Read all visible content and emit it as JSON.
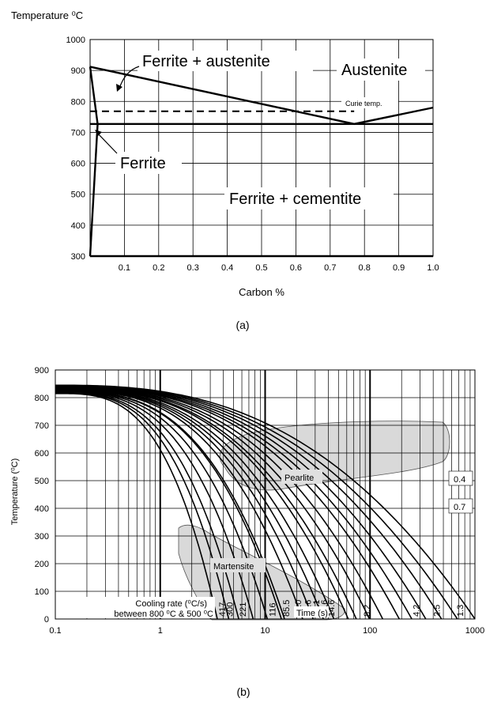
{
  "chart_data": [
    {
      "id": "a",
      "type": "line",
      "caption": "(a)",
      "ylabel": "Temperature ⁰C",
      "xlabel": "Carbon %",
      "xlim": [
        0,
        1.0
      ],
      "ylim": [
        300,
        1000
      ],
      "xticks": [
        "0.1",
        "0.2",
        "0.3",
        "0.4",
        "0.5",
        "0.6",
        "0.7",
        "0.8",
        "0.9",
        "1.0"
      ],
      "yticks": [
        "300",
        "400",
        "500",
        "600",
        "700",
        "800",
        "900",
        "1000"
      ],
      "grid": true,
      "phase_lines": [
        {
          "points": [
            [
              0,
              912
            ],
            [
              0.77,
              727
            ],
            [
              1.0,
              780
            ]
          ]
        },
        {
          "points": [
            [
              0,
              727
            ],
            [
              1.0,
              727
            ]
          ]
        },
        {
          "points": [
            [
              0,
              912
            ],
            [
              0.022,
              727
            ]
          ]
        },
        {
          "points": [
            [
              0.022,
              727
            ],
            [
              0,
              300
            ]
          ]
        },
        {
          "points": [
            [
              0,
              300
            ],
            [
              1.0,
              300
            ]
          ]
        }
      ],
      "curie_line": {
        "x": [
          0,
          0.77
        ],
        "y": 768,
        "style": "dashed"
      },
      "region_labels": [
        "Ferrite + austenite",
        "Austenite",
        "Curie temp.",
        "Ferrite",
        "Ferrite + cementite"
      ]
    },
    {
      "id": "b",
      "type": "line",
      "caption": "(b)",
      "ylabel": "Temperature (⁰C)",
      "xlabel": "Time (s)",
      "xscale": "log",
      "xlim": [
        0.1,
        1000
      ],
      "ylim": [
        0,
        900
      ],
      "xticks": [
        "0.1",
        "1",
        "10",
        "100",
        "1000"
      ],
      "yticks": [
        "0",
        "100",
        "200",
        "300",
        "400",
        "500",
        "600",
        "700",
        "800",
        "900"
      ],
      "grid": true,
      "cooling_rate_label": [
        "Cooling rate (⁰C/s)",
        "between 800 ⁰C & 500 ⁰C"
      ],
      "cooling_rates": [
        "417",
        "300",
        "221",
        "116",
        "85.5",
        "64.0",
        "38.6",
        "29.1",
        "18.6",
        "14.6",
        "8.2",
        "4.2",
        "2.5",
        "1.3"
      ],
      "region_labels": [
        "Pearlite",
        "Martensite"
      ],
      "curve_labels": [
        "0.4",
        "0.7"
      ],
      "cooling_curve_end_times": [
        3.5,
        4.5,
        5.6,
        7.7,
        10.5,
        14.3,
        15.3,
        22.8,
        28.7,
        35.9,
        45.2,
        62,
        74,
        98.7,
        132,
        190,
        250,
        340,
        480,
        680,
        1000
      ]
    }
  ]
}
